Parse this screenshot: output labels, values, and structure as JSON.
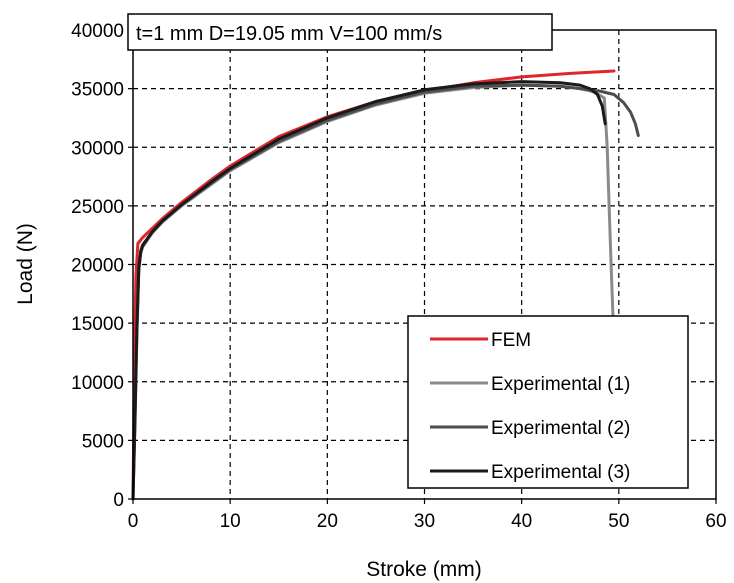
{
  "chart_data": {
    "type": "line",
    "title": "t=1 mm D=19.05 mm V=100 mm/s",
    "xlabel": "Stroke (mm)",
    "ylabel": "Load (N)",
    "xlim": [
      0,
      60
    ],
    "ylim": [
      0,
      40000
    ],
    "xticks": [
      0,
      10,
      20,
      30,
      40,
      50,
      60
    ],
    "yticks": [
      0,
      5000,
      10000,
      15000,
      20000,
      25000,
      30000,
      35000,
      40000
    ],
    "grid": true,
    "legend_position": "bottom-right",
    "series": [
      {
        "name": "FEM",
        "color": "#e0262b",
        "x": [
          0,
          0.15,
          0.3,
          0.5,
          1,
          2,
          3,
          5,
          8,
          10,
          15,
          20,
          25,
          30,
          35,
          40,
          45,
          49.5
        ],
        "y": [
          0,
          12000,
          19000,
          21800,
          22300,
          23100,
          23900,
          25300,
          27200,
          28400,
          30900,
          32600,
          33900,
          34800,
          35500,
          36000,
          36300,
          36500
        ]
      },
      {
        "name": "Experimental (1)",
        "color": "#8a8a8a",
        "x": [
          0,
          0.2,
          0.4,
          0.6,
          0.8,
          1,
          2,
          3,
          5,
          8,
          10,
          15,
          20,
          25,
          30,
          35,
          40,
          44,
          46,
          47.5,
          48.5,
          48.8,
          49,
          49.2,
          49.4
        ],
        "y": [
          0,
          6000,
          14000,
          19500,
          21000,
          21500,
          22700,
          23600,
          25000,
          26800,
          28000,
          30400,
          32200,
          33600,
          34600,
          35100,
          35300,
          35200,
          35000,
          34700,
          34200,
          30000,
          25000,
          20000,
          15500
        ]
      },
      {
        "name": "Experimental (2)",
        "color": "#4d4d4d",
        "x": [
          0,
          0.2,
          0.4,
          0.6,
          0.8,
          1,
          2,
          3,
          5,
          8,
          10,
          15,
          20,
          25,
          30,
          35,
          40,
          44,
          46,
          48,
          49.5,
          50.5,
          51.2,
          51.7,
          52
        ],
        "y": [
          0,
          7000,
          15000,
          19800,
          21200,
          21700,
          22800,
          23700,
          25100,
          26900,
          28100,
          30500,
          32300,
          33700,
          34700,
          35200,
          35300,
          35200,
          35000,
          34800,
          34500,
          33800,
          33000,
          32000,
          31000
        ]
      },
      {
        "name": "Experimental (3)",
        "color": "#1a1a1a",
        "x": [
          0,
          0.2,
          0.4,
          0.6,
          0.8,
          1,
          2,
          3,
          5,
          8,
          10,
          15,
          20,
          25,
          30,
          35,
          40,
          44,
          46,
          47,
          47.8,
          48.3,
          48.6
        ],
        "y": [
          0,
          6500,
          14500,
          19700,
          21100,
          21600,
          22800,
          23700,
          25100,
          27000,
          28200,
          30700,
          32500,
          33900,
          34900,
          35400,
          35600,
          35500,
          35300,
          35000,
          34500,
          33500,
          32000
        ]
      }
    ]
  }
}
